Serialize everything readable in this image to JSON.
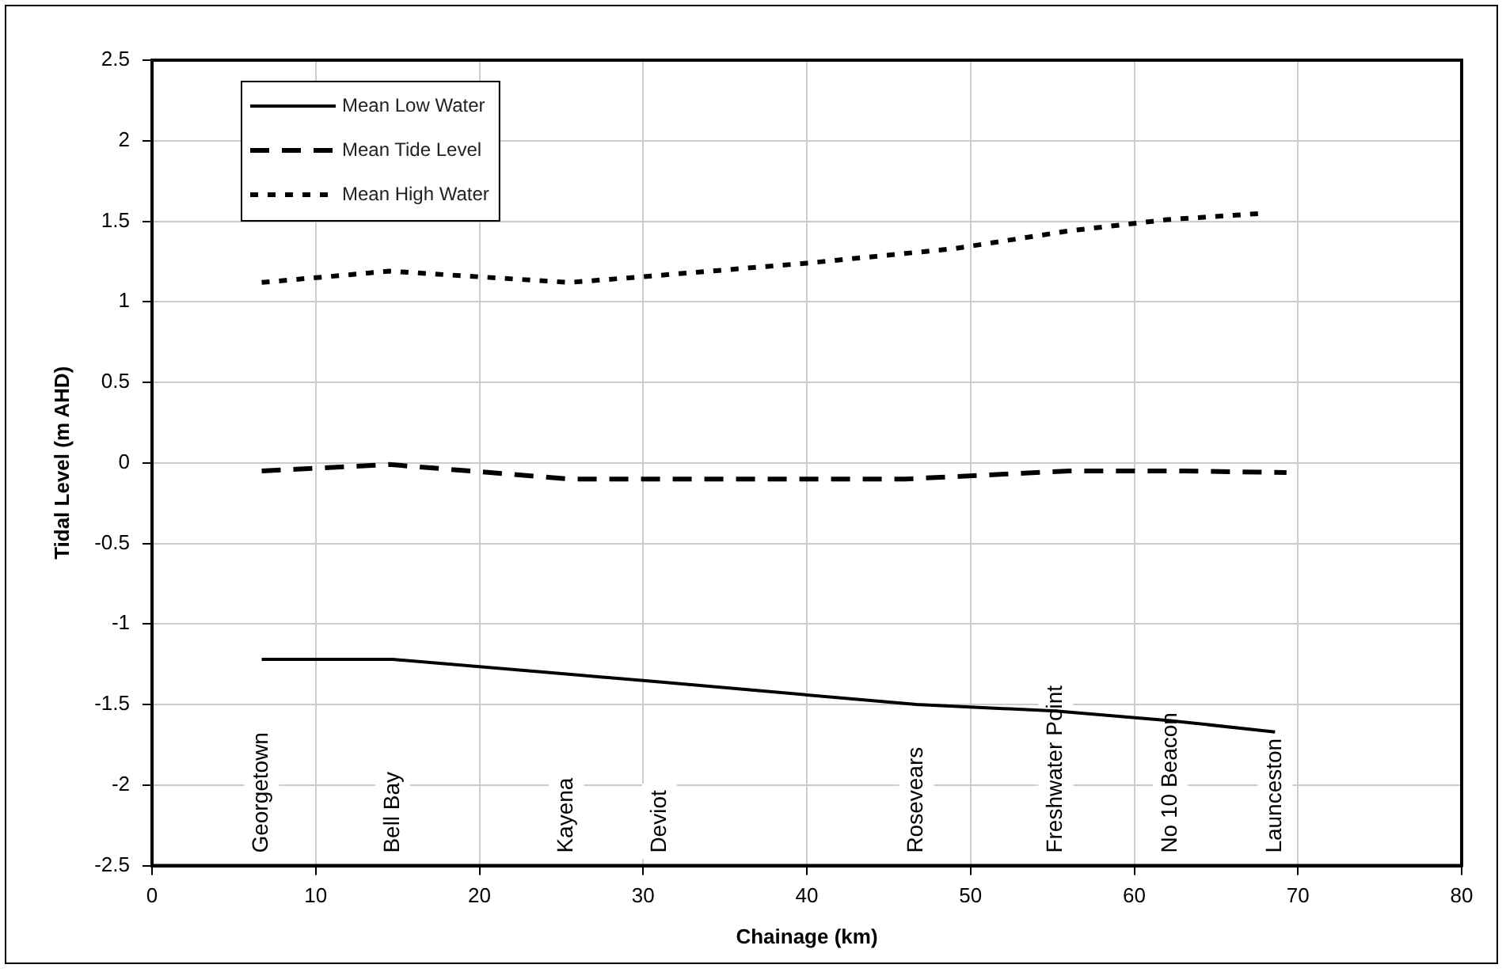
{
  "chart_data": {
    "type": "line",
    "xlabel": "Chainage (km)",
    "ylabel": "Tidal Level (m AHD)",
    "xlim": [
      0,
      80
    ],
    "xticks": [
      0,
      10,
      20,
      30,
      40,
      50,
      60,
      70,
      80
    ],
    "ylim": [
      -2.5,
      2.5
    ],
    "yticks": [
      -2.5,
      -2,
      -1.5,
      -1,
      -0.5,
      0,
      0.5,
      1,
      1.5,
      2,
      2.5
    ],
    "grid": true,
    "legend": "top left",
    "marker": "none",
    "series": [
      {
        "name": "Mean Low Water",
        "color": "#000000",
        "line_style": "solid",
        "x": [
          6.7,
          14.7,
          25.3,
          31,
          46.7,
          55.2,
          62.2,
          68.6
        ],
        "values": [
          -1.22,
          -1.22,
          -1.31,
          -1.36,
          -1.5,
          -1.54,
          -1.6,
          -1.67
        ]
      },
      {
        "name": "Mean Tide Level",
        "color": "#000000",
        "line_style": "dashed",
        "x": [
          6.7,
          14.5,
          25.5,
          46,
          56,
          63,
          69.3
        ],
        "values": [
          -0.05,
          -0.01,
          -0.1,
          -0.1,
          -0.05,
          -0.05,
          -0.06
        ]
      },
      {
        "name": "Mean High Water",
        "color": "#000000",
        "line_style": "dotted",
        "x": [
          6.7,
          14.5,
          25.5,
          30.5,
          40,
          49,
          56,
          62,
          68
        ],
        "values": [
          1.12,
          1.19,
          1.12,
          1.16,
          1.24,
          1.33,
          1.44,
          1.51,
          1.55
        ]
      }
    ],
    "annotations": [
      "Georgetown",
      "Bell Bay",
      "Kayena",
      "Deviot",
      "Rosevears",
      "Freshwater Point",
      "No 10 Beacon",
      "Launceston"
    ]
  }
}
